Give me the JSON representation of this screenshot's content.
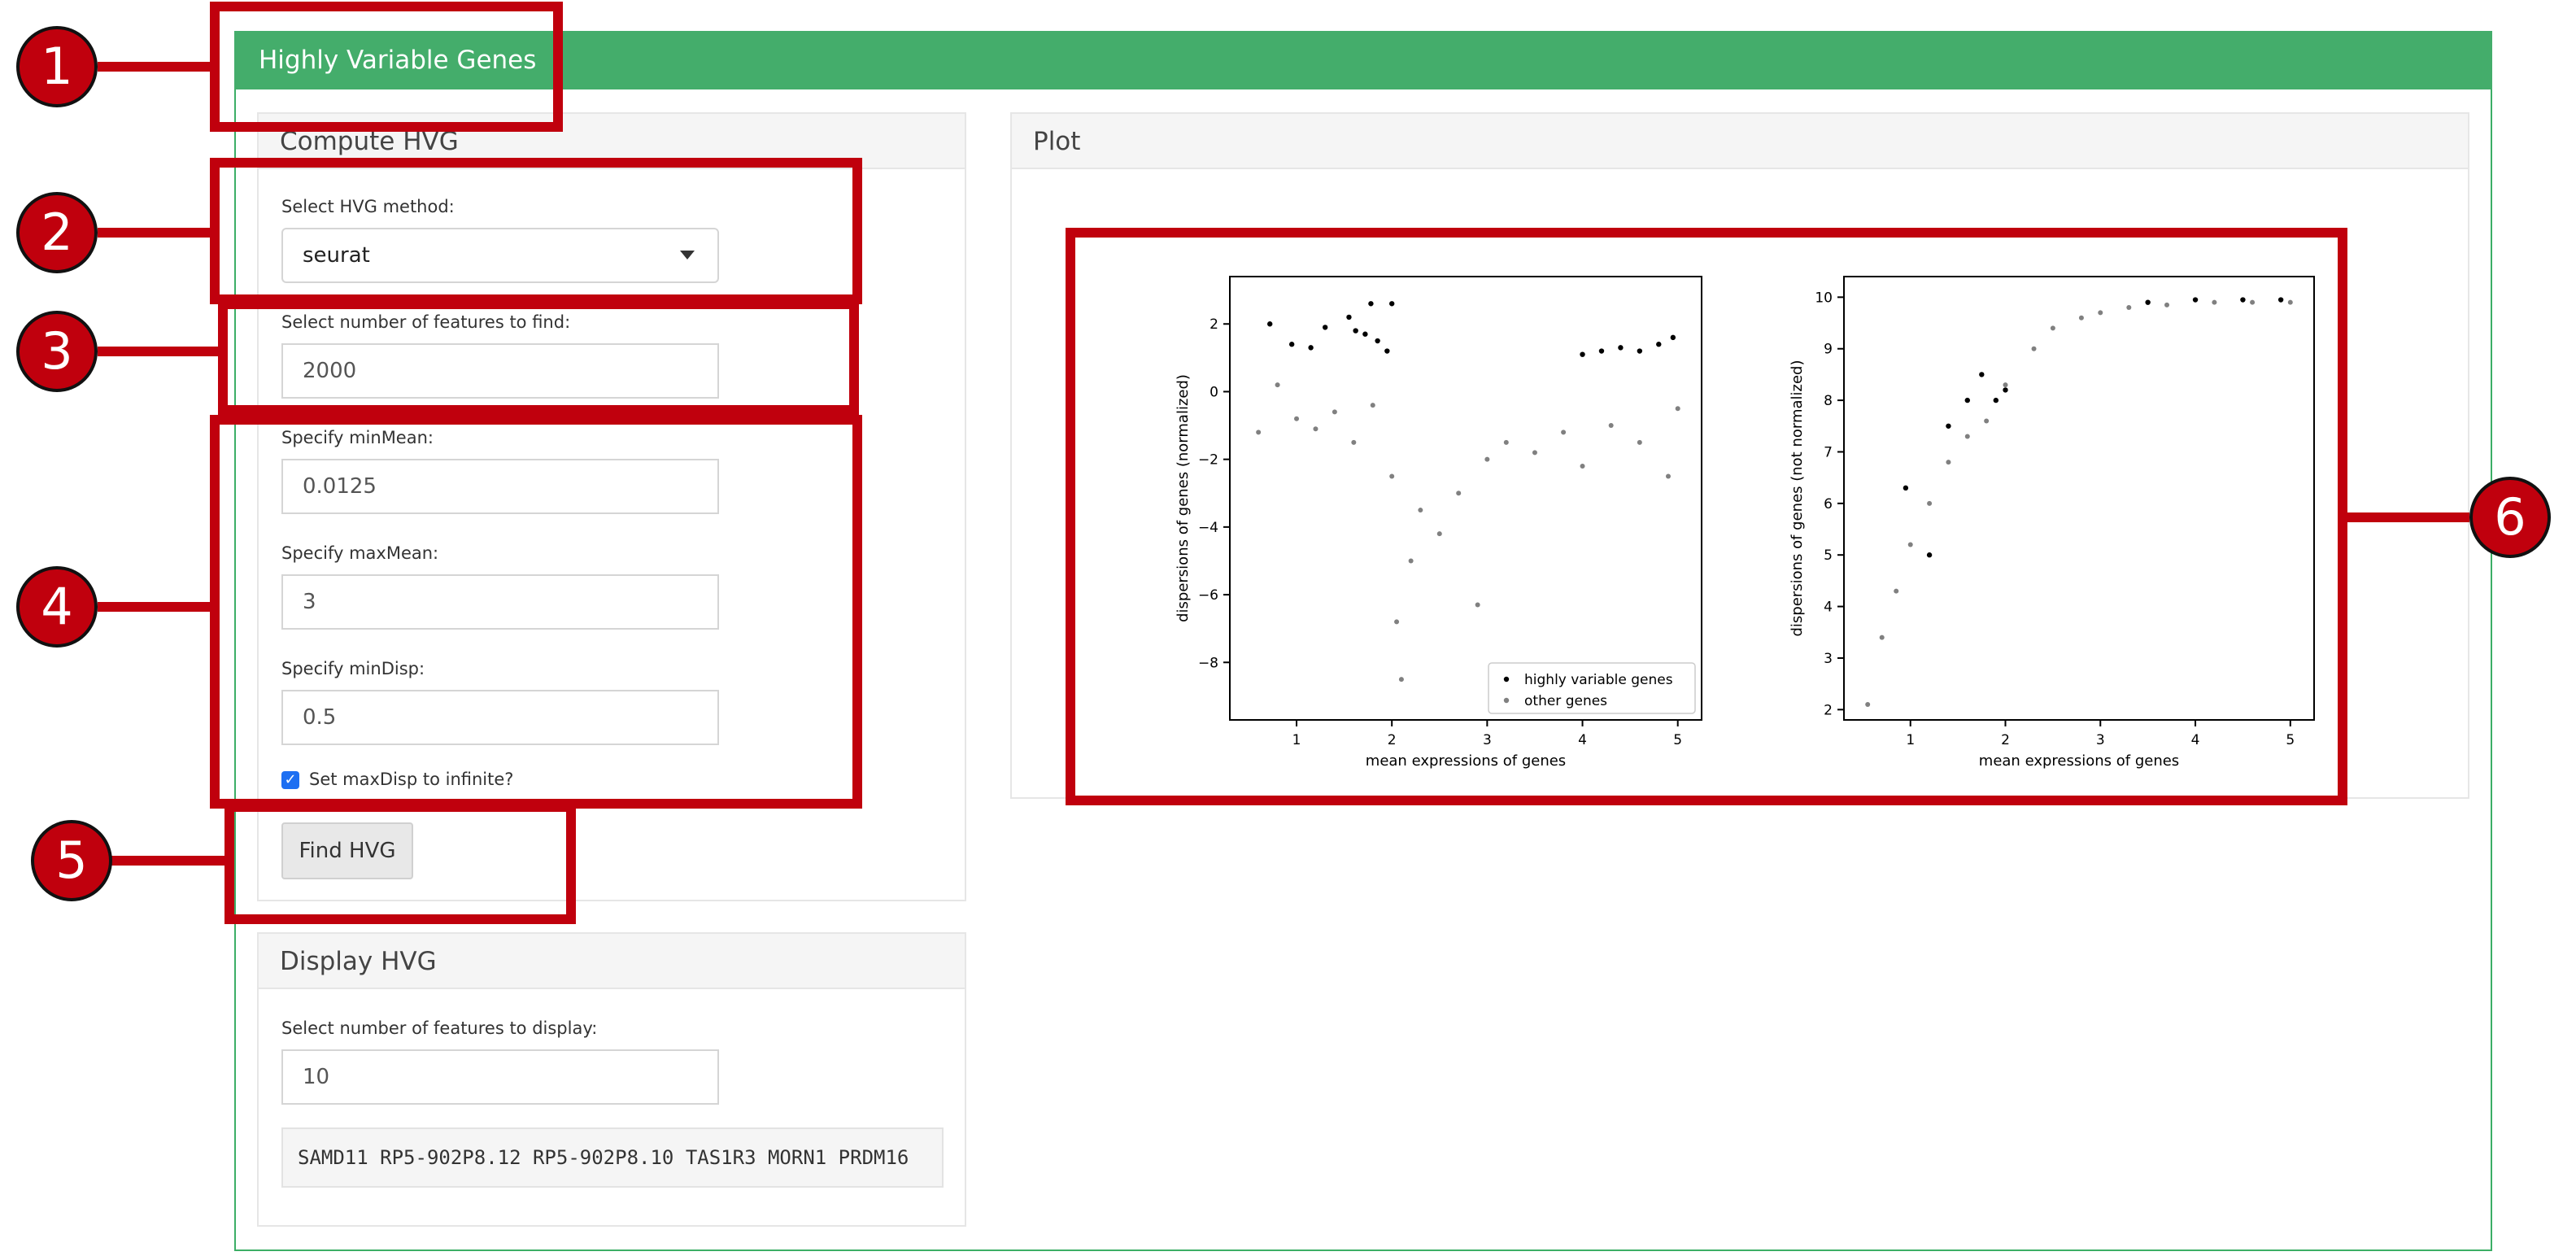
{
  "header": {
    "title": "Highly Variable Genes"
  },
  "compute": {
    "title": "Compute HVG",
    "method_label": "Select HVG method:",
    "method_value": "seurat",
    "n_features_label": "Select number of features to find:",
    "n_features_value": "2000",
    "min_mean_label": "Specify minMean:",
    "min_mean_value": "0.0125",
    "max_mean_label": "Specify maxMean:",
    "max_mean_value": "3",
    "min_disp_label": "Specify minDisp:",
    "min_disp_value": "0.5",
    "max_disp_inf_label": "Set maxDisp to infinite?",
    "max_disp_inf_checked": true,
    "find_button": "Find HVG"
  },
  "display": {
    "title": "Display HVG",
    "n_display_label": "Select number of features to display:",
    "n_display_value": "10",
    "genes_text": "SAMD11 RP5-902P8.12 RP5-902P8.10 TAS1R3 MORN1 PRDM16"
  },
  "plot_panel": {
    "title": "Plot"
  },
  "callouts": [
    "1",
    "2",
    "3",
    "4",
    "5",
    "6"
  ],
  "colors": {
    "header_green": "#44ad6b",
    "callout_red": "#c0000d",
    "hvg_points": "#000000",
    "other_points": "#808080"
  },
  "chart_data": [
    {
      "type": "scatter",
      "xlabel": "mean expressions of genes",
      "ylabel": "dispersions of genes (normalized)",
      "xticks": [
        "1",
        "2",
        "3",
        "4",
        "5"
      ],
      "yticks": [
        "2",
        "0",
        "−2",
        "−4",
        "−6",
        "−8"
      ],
      "xlim": [
        0.3,
        5.25
      ],
      "ylim": [
        -9.7,
        3.4
      ],
      "legend": {
        "position": "lower-right",
        "entries": [
          "highly variable genes",
          "other genes"
        ]
      },
      "series": [
        {
          "name": "highly variable genes",
          "color": "#000000",
          "points": [
            [
              0.72,
              2.0
            ],
            [
              0.95,
              1.4
            ],
            [
              1.15,
              1.3
            ],
            [
              1.3,
              1.9
            ],
            [
              1.55,
              2.2
            ],
            [
              1.62,
              1.8
            ],
            [
              1.72,
              1.7
            ],
            [
              1.78,
              2.6
            ],
            [
              1.85,
              1.5
            ],
            [
              1.95,
              1.2
            ],
            [
              2.0,
              2.6
            ],
            [
              4.0,
              1.1
            ],
            [
              4.2,
              1.2
            ],
            [
              4.4,
              1.3
            ],
            [
              4.6,
              1.2
            ],
            [
              4.8,
              1.4
            ],
            [
              4.95,
              1.6
            ]
          ]
        },
        {
          "name": "other genes",
          "color": "#808080",
          "points": [
            [
              0.6,
              -1.2
            ],
            [
              0.8,
              0.2
            ],
            [
              1.0,
              -0.8
            ],
            [
              1.2,
              -1.1
            ],
            [
              1.4,
              -0.6
            ],
            [
              1.6,
              -1.5
            ],
            [
              1.8,
              -0.4
            ],
            [
              2.0,
              -2.5
            ],
            [
              2.05,
              -6.8
            ],
            [
              2.1,
              -8.5
            ],
            [
              2.2,
              -5.0
            ],
            [
              2.3,
              -3.5
            ],
            [
              2.5,
              -4.2
            ],
            [
              2.7,
              -3.0
            ],
            [
              2.9,
              -6.3
            ],
            [
              3.0,
              -2.0
            ],
            [
              3.2,
              -1.5
            ],
            [
              3.5,
              -1.8
            ],
            [
              3.8,
              -1.2
            ],
            [
              4.0,
              -2.2
            ],
            [
              4.3,
              -1.0
            ],
            [
              4.6,
              -1.5
            ],
            [
              4.9,
              -2.5
            ],
            [
              5.0,
              -0.5
            ]
          ]
        }
      ]
    },
    {
      "type": "scatter",
      "xlabel": "mean expressions of genes",
      "ylabel": "dispersions of genes (not normalized)",
      "xticks": [
        "1",
        "2",
        "3",
        "4",
        "5"
      ],
      "yticks": [
        "10",
        "9",
        "8",
        "7",
        "6",
        "5",
        "4",
        "3",
        "2"
      ],
      "xlim": [
        0.3,
        5.25
      ],
      "ylim": [
        1.8,
        10.4
      ],
      "series": [
        {
          "name": "highly variable genes",
          "color": "#000000",
          "points": [
            [
              0.95,
              6.3
            ],
            [
              1.2,
              5.0
            ],
            [
              1.4,
              7.5
            ],
            [
              1.6,
              8.0
            ],
            [
              1.75,
              8.5
            ],
            [
              1.9,
              8.0
            ],
            [
              2.0,
              8.2
            ],
            [
              3.5,
              9.9
            ],
            [
              4.0,
              9.95
            ],
            [
              4.5,
              9.95
            ],
            [
              4.9,
              9.95
            ]
          ]
        },
        {
          "name": "other genes",
          "color": "#808080",
          "points": [
            [
              0.55,
              2.1
            ],
            [
              0.7,
              3.4
            ],
            [
              0.85,
              4.3
            ],
            [
              1.0,
              5.2
            ],
            [
              1.2,
              6.0
            ],
            [
              1.4,
              6.8
            ],
            [
              1.6,
              7.3
            ],
            [
              1.8,
              7.6
            ],
            [
              2.0,
              8.3
            ],
            [
              2.3,
              9.0
            ],
            [
              2.5,
              9.4
            ],
            [
              2.8,
              9.6
            ],
            [
              3.0,
              9.7
            ],
            [
              3.3,
              9.8
            ],
            [
              3.7,
              9.85
            ],
            [
              4.2,
              9.9
            ],
            [
              4.6,
              9.9
            ],
            [
              5.0,
              9.9
            ]
          ]
        }
      ]
    }
  ]
}
